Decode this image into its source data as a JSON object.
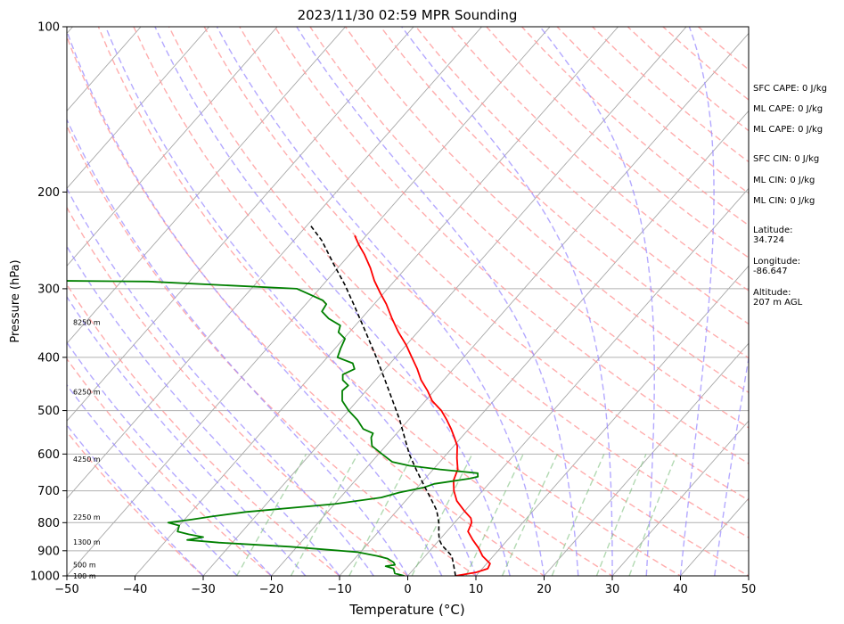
{
  "chart_data": {
    "type": "line",
    "title": "2023/11/30 02:59 MPR Sounding",
    "xlabel": "Temperature (°C)",
    "ylabel": "Pressure (hPa)",
    "xlim": [
      -50,
      50
    ],
    "ylim": [
      1000,
      100
    ],
    "y_scale": "log",
    "skew": "skew-T",
    "x_ticks": [
      "−50",
      "−40",
      "−30",
      "−20",
      "−10",
      "0",
      "10",
      "20",
      "30",
      "40",
      "50"
    ],
    "y_ticks": [
      "100",
      "200",
      "300",
      "400",
      "500",
      "600",
      "700",
      "800",
      "900",
      "1000"
    ],
    "height_labels": [
      {
        "p": 1000,
        "text": "100 m"
      },
      {
        "p": 955,
        "text": "500 m"
      },
      {
        "p": 868,
        "text": "1300 m"
      },
      {
        "p": 782,
        "text": "2250 m"
      },
      {
        "p": 613,
        "text": "4250 m"
      },
      {
        "p": 462,
        "text": "6250 m"
      },
      {
        "p": 345,
        "text": "8250 m"
      }
    ],
    "series": [
      {
        "color": "#ff0000",
        "style": "solid",
        "points": [
          [
            7,
            1000
          ],
          [
            9.6,
            985
          ],
          [
            10.8,
            970
          ],
          [
            10.5,
            950
          ],
          [
            8.4,
            920
          ],
          [
            6.8,
            890
          ],
          [
            4.9,
            860
          ],
          [
            3.1,
            830
          ],
          [
            2.5,
            800
          ],
          [
            1.8,
            785
          ],
          [
            -0.2,
            760
          ],
          [
            -2.5,
            730
          ],
          [
            -4.2,
            700
          ],
          [
            -5.6,
            670
          ],
          [
            -6.4,
            640
          ],
          [
            -8,
            610
          ],
          [
            -9.5,
            580
          ],
          [
            -11,
            560
          ],
          [
            -12.6,
            540
          ],
          [
            -14.4,
            520
          ],
          [
            -16.4,
            500
          ],
          [
            -19,
            480
          ],
          [
            -21,
            460
          ],
          [
            -23.3,
            440
          ],
          [
            -25.3,
            420
          ],
          [
            -27.6,
            400
          ],
          [
            -30,
            380
          ],
          [
            -32.8,
            360
          ],
          [
            -35.5,
            340
          ],
          [
            -38.2,
            320
          ],
          [
            -40.6,
            305
          ],
          [
            -43,
            290
          ],
          [
            -45.2,
            275
          ],
          [
            -47.8,
            260
          ],
          [
            -49.8,
            250
          ],
          [
            -51.7,
            240
          ]
        ]
      },
      {
        "color": "#008000",
        "style": "solid",
        "points": [
          [
            -0.5,
            1000
          ],
          [
            -2.2,
            990
          ],
          [
            -3,
            970
          ],
          [
            -4.5,
            960
          ],
          [
            -3.3,
            955
          ],
          [
            -3.8,
            945
          ],
          [
            -5.2,
            930
          ],
          [
            -7,
            920
          ],
          [
            -10.5,
            905
          ],
          [
            -21,
            885
          ],
          [
            -32,
            870
          ],
          [
            -37,
            860
          ],
          [
            -35,
            850
          ],
          [
            -37.5,
            840
          ],
          [
            -39.5,
            830
          ],
          [
            -40,
            810
          ],
          [
            -42,
            800
          ],
          [
            -39,
            790
          ],
          [
            -36.5,
            780
          ],
          [
            -32,
            765
          ],
          [
            -20,
            740
          ],
          [
            -14,
            720
          ],
          [
            -12,
            705
          ],
          [
            -9,
            690
          ],
          [
            -8,
            680
          ],
          [
            -5,
            670
          ],
          [
            -3.5,
            665
          ],
          [
            -2.5,
            660
          ],
          [
            -3,
            650
          ],
          [
            -9,
            640
          ],
          [
            -14,
            630
          ],
          [
            -17,
            620
          ],
          [
            -19.5,
            600
          ],
          [
            -22,
            580
          ],
          [
            -23.2,
            560
          ],
          [
            -23.5,
            550
          ],
          [
            -25.5,
            540
          ],
          [
            -27.5,
            520
          ],
          [
            -30,
            500
          ],
          [
            -32.2,
            480
          ],
          [
            -33.5,
            460
          ],
          [
            -33.3,
            450
          ],
          [
            -34.8,
            440
          ],
          [
            -35.5,
            430
          ],
          [
            -34.5,
            420
          ],
          [
            -35.5,
            410
          ],
          [
            -38.5,
            400
          ],
          [
            -39.2,
            385
          ],
          [
            -39.8,
            370
          ],
          [
            -41.6,
            360
          ],
          [
            -42.2,
            350
          ],
          [
            -44.8,
            340
          ],
          [
            -46.7,
            330
          ],
          [
            -47,
            320
          ],
          [
            -48,
            315
          ],
          [
            -51.5,
            305
          ],
          [
            -53.3,
            300
          ],
          [
            -76,
            291
          ],
          [
            -92,
            290
          ],
          [
            -100,
            290
          ]
        ]
      },
      {
        "color": "#000000",
        "style": "dashed",
        "points": [
          [
            7,
            1000
          ],
          [
            5.5,
            960
          ],
          [
            3.9,
            920
          ],
          [
            1.1,
            880
          ],
          [
            0,
            860
          ],
          [
            -0.8,
            840
          ],
          [
            -2.3,
            800
          ],
          [
            -4.2,
            760
          ],
          [
            -6.8,
            720
          ],
          [
            -9.6,
            680
          ],
          [
            -12.5,
            640
          ],
          [
            -15.5,
            600
          ],
          [
            -18.3,
            560
          ],
          [
            -21.3,
            520
          ],
          [
            -24.8,
            480
          ],
          [
            -28.6,
            440
          ],
          [
            -32.8,
            400
          ],
          [
            -37.6,
            360
          ],
          [
            -43,
            320
          ],
          [
            -46.8,
            295
          ],
          [
            -51.2,
            270
          ],
          [
            -55.9,
            245
          ],
          [
            -59.5,
            230
          ]
        ]
      }
    ],
    "reference_lines": {
      "isobars": [
        100,
        200,
        300,
        400,
        500,
        600,
        700,
        800,
        900,
        1000
      ],
      "isotherms_color": "#a8a8a8",
      "dry_adiabats_color": "#ff9999",
      "moist_adiabats_color": "#9b8cff",
      "mixing_ratio_color": "#7fbf7f"
    }
  },
  "sidebar": {
    "sfc_cape": "SFC CAPE: 0 J/kg",
    "ml_cape_1": "ML CAPE: 0 J/kg",
    "ml_cape_2": "ML CAPE: 0 J/kg",
    "sfc_cin": "SFC CIN: 0 J/kg",
    "ml_cin_1": "ML CIN: 0 J/kg",
    "ml_cin_2": "ML CIN: 0 J/kg",
    "latitude_label": "Latitude:",
    "latitude_value": "34.724",
    "longitude_label": "Longitude:",
    "longitude_value": "-86.647",
    "altitude_label": "Altitude:",
    "altitude_value": "207 m AGL"
  }
}
